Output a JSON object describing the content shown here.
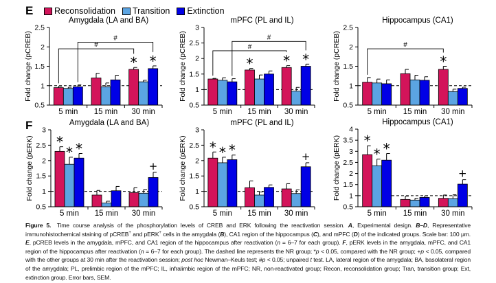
{
  "panel_labels": {
    "E": "E",
    "F": "F"
  },
  "legend": [
    {
      "name": "Reconsolidation",
      "color": "#d3145a"
    },
    {
      "name": "Transition",
      "color": "#5ba4e2"
    },
    {
      "name": "Extinction",
      "color": "#0000e6"
    }
  ],
  "chart_data": [
    {
      "id": "E-amygdala",
      "type": "bar",
      "title": "Amygdala (LA and BA)",
      "ylabel": "Fold change (pCREB)",
      "ylim": [
        0.5,
        2.5
      ],
      "yticks": [
        "0.5",
        "1",
        "1.5",
        "2",
        "2.5"
      ],
      "reference_line": 1,
      "categories": [
        "5 min",
        "15 min",
        "30 min"
      ],
      "series": [
        {
          "name": "Reconsolidation",
          "values": [
            0.95,
            1.2,
            1.42
          ],
          "errors": [
            0.04,
            0.12,
            0.05
          ]
        },
        {
          "name": "Transition",
          "values": [
            0.93,
            0.97,
            1.1
          ],
          "errors": [
            0.03,
            0.1,
            0.04
          ]
        },
        {
          "name": "Extinction",
          "values": [
            0.97,
            1.15,
            1.44
          ],
          "errors": [
            0.05,
            0.12,
            0.07
          ]
        }
      ],
      "markers": [
        {
          "series": 0,
          "category": 2,
          "symbol": "*"
        },
        {
          "series": 2,
          "category": 2,
          "symbol": "*"
        }
      ],
      "brackets": [
        {
          "from": [
            0,
            0
          ],
          "to": [
            2,
            0
          ],
          "y": 1.95,
          "symbol": "#"
        },
        {
          "from": [
            0,
            2
          ],
          "to": [
            2,
            2
          ],
          "y": 2.12,
          "symbol": "#"
        }
      ]
    },
    {
      "id": "E-mpfc",
      "type": "bar",
      "title": "mPFC (PL and IL)",
      "ylabel": "Fold change (pCREB)",
      "ylim": [
        0.5,
        3
      ],
      "yticks": [
        "0.5",
        "1",
        "1.5",
        "2",
        "2.5",
        "3"
      ],
      "reference_line": 1,
      "categories": [
        "5 min",
        "15 min",
        "30 min"
      ],
      "series": [
        {
          "name": "Reconsolidation",
          "values": [
            1.34,
            1.63,
            1.71
          ],
          "errors": [
            0.02,
            0.05,
            0.06
          ]
        },
        {
          "name": "Transition",
          "values": [
            1.3,
            1.34,
            0.95
          ],
          "errors": [
            0.08,
            0.13,
            0.12
          ]
        },
        {
          "name": "Extinction",
          "values": [
            1.25,
            1.5,
            1.75
          ],
          "errors": [
            0.1,
            0.1,
            0.07
          ]
        }
      ],
      "markers": [
        {
          "series": 0,
          "category": 1,
          "symbol": "*"
        },
        {
          "series": 0,
          "category": 2,
          "symbol": "*"
        },
        {
          "series": 2,
          "category": 2,
          "symbol": "*"
        }
      ],
      "brackets": [
        {
          "from": [
            0,
            0
          ],
          "to": [
            2,
            0
          ],
          "y": 2.25,
          "symbol": "#"
        },
        {
          "from": [
            0,
            2
          ],
          "to": [
            2,
            2
          ],
          "y": 2.55,
          "symbol": "#"
        }
      ]
    },
    {
      "id": "E-hippocampus",
      "type": "bar",
      "title": "Hippocampus (CA1)",
      "ylabel": "Fold change (pCREB)",
      "ylim": [
        0.5,
        2.5
      ],
      "yticks": [
        "0.5",
        "1",
        "1.5",
        "2",
        "2.5"
      ],
      "reference_line": 1,
      "categories": [
        "5 min",
        "15 min",
        "30 min"
      ],
      "series": [
        {
          "name": "Reconsolidation",
          "values": [
            1.09,
            1.31,
            1.42
          ],
          "errors": [
            0.12,
            0.11,
            0.08
          ]
        },
        {
          "name": "Transition",
          "values": [
            1.07,
            1.15,
            0.85
          ],
          "errors": [
            0.1,
            0.12,
            0.06
          ]
        },
        {
          "name": "Extinction",
          "values": [
            1.05,
            1.14,
            0.93
          ],
          "errors": [
            0.1,
            0.09,
            0.03
          ]
        }
      ],
      "markers": [
        {
          "series": 0,
          "category": 2,
          "symbol": "*"
        }
      ],
      "brackets": [
        {
          "from": [
            0,
            0
          ],
          "to": [
            2,
            0
          ],
          "y": 1.95,
          "symbol": "#"
        }
      ]
    },
    {
      "id": "F-amygdala",
      "type": "bar",
      "title": "Amygdala (LA and BA)",
      "ylabel": "Fold change (pERK)",
      "ylim": [
        0.5,
        3
      ],
      "yticks": [
        "0.5",
        "1",
        "1.5",
        "2",
        "2.5",
        "3"
      ],
      "reference_line": 1,
      "categories": [
        "5 min",
        "15 min",
        "30 min"
      ],
      "series": [
        {
          "name": "Reconsolidation",
          "values": [
            2.3,
            0.88,
            0.96
          ],
          "errors": [
            0.15,
            0.15,
            0.16
          ]
        },
        {
          "name": "Transition",
          "values": [
            1.88,
            0.62,
            0.94
          ],
          "errors": [
            0.23,
            0.06,
            0.12
          ]
        },
        {
          "name": "Extinction",
          "values": [
            2.08,
            1.02,
            1.45
          ],
          "errors": [
            0.15,
            0.14,
            0.17
          ]
        }
      ],
      "markers": [
        {
          "series": 0,
          "category": 0,
          "symbol": "*"
        },
        {
          "series": 1,
          "category": 0,
          "symbol": "*"
        },
        {
          "series": 2,
          "category": 0,
          "symbol": "*"
        },
        {
          "series": 2,
          "category": 2,
          "symbol": "+"
        }
      ],
      "brackets": []
    },
    {
      "id": "F-mpfc",
      "type": "bar",
      "title": "mPFC (PL and IL)",
      "ylabel": "Fold change (pERK)",
      "ylim": [
        0.5,
        3
      ],
      "yticks": [
        "0.5",
        "1",
        "1.5",
        "2",
        "2.5",
        "3"
      ],
      "reference_line": 1,
      "categories": [
        "5 min",
        "15 min",
        "30 min"
      ],
      "series": [
        {
          "name": "Reconsolidation",
          "values": [
            2.08,
            1.12,
            1.08
          ],
          "errors": [
            0.2,
            0.22,
            0.17
          ]
        },
        {
          "name": "Transition",
          "values": [
            1.93,
            0.88,
            0.93
          ],
          "errors": [
            0.18,
            0.1,
            0.12
          ]
        },
        {
          "name": "Extinction",
          "values": [
            2.03,
            1.13,
            1.8
          ],
          "errors": [
            0.15,
            0.08,
            0.13
          ]
        }
      ],
      "markers": [
        {
          "series": 0,
          "category": 0,
          "symbol": "*"
        },
        {
          "series": 1,
          "category": 0,
          "symbol": "*"
        },
        {
          "series": 2,
          "category": 0,
          "symbol": "*"
        },
        {
          "series": 2,
          "category": 2,
          "symbol": "+"
        }
      ],
      "brackets": []
    },
    {
      "id": "F-hippocampus",
      "type": "bar",
      "title": "Hippocampus (CA1)",
      "ylabel": "Fold change (pERK)",
      "ylim": [
        0.5,
        4
      ],
      "yticks": [
        "0.5",
        "1",
        "1.5",
        "2",
        "2.5",
        "3",
        "3.5",
        "4"
      ],
      "reference_line": 1,
      "categories": [
        "5 min",
        "15 min",
        "30 min"
      ],
      "series": [
        {
          "name": "Reconsolidation",
          "values": [
            2.85,
            0.83,
            0.88
          ],
          "errors": [
            0.4,
            0.15,
            0.15
          ]
        },
        {
          "name": "Transition",
          "values": [
            2.35,
            0.8,
            0.87
          ],
          "errors": [
            0.3,
            0.08,
            0.17
          ]
        },
        {
          "name": "Extinction",
          "values": [
            2.6,
            0.92,
            1.52
          ],
          "errors": [
            0.3,
            0.07,
            0.2
          ]
        }
      ],
      "markers": [
        {
          "series": 0,
          "category": 0,
          "symbol": "*"
        },
        {
          "series": 1,
          "category": 0,
          "symbol": "*"
        },
        {
          "series": 2,
          "category": 0,
          "symbol": "*"
        },
        {
          "series": 2,
          "category": 2,
          "symbol": "+"
        }
      ],
      "brackets": []
    }
  ],
  "caption": [
    {
      "t": "Figure 5.",
      "s": "b"
    },
    {
      "t": " Time course analysis of the phosphorylation levels of CREB and ERK following the reactivation session. "
    },
    {
      "t": "A",
      "s": "bi"
    },
    {
      "t": ", Experimental design. "
    },
    {
      "t": "B–D",
      "s": "bi"
    },
    {
      "t": ", Representative immunohistochemical staining of pCREB"
    },
    {
      "t": "+",
      "s": "sup"
    },
    {
      "t": " and pERK"
    },
    {
      "t": "+",
      "s": "sup"
    },
    {
      "t": " cells in the amygdala ("
    },
    {
      "t": "B",
      "s": "bi"
    },
    {
      "t": "), CA1 region of the hippocampus ("
    },
    {
      "t": "C",
      "s": "bi"
    },
    {
      "t": "), and mPFC ("
    },
    {
      "t": "D",
      "s": "bi"
    },
    {
      "t": ") of the indicated groups. Scale bar: 100 μm. "
    },
    {
      "t": "E",
      "s": "bi"
    },
    {
      "t": ", pCREB levels in the amygdala, mPFC, and CA1 region of the hippocampus after reactivation ("
    },
    {
      "t": "n",
      "s": "i"
    },
    {
      "t": " = 6–7 for each group). "
    },
    {
      "t": "F",
      "s": "bi"
    },
    {
      "t": ", pERK levels in the amygdala, mPFC, and CA1 region of the hippocampus after reactivation ("
    },
    {
      "t": "n",
      "s": "i"
    },
    {
      "t": " = 6–7 for each group). The dashed line represents the NR group; *"
    },
    {
      "t": "p",
      "s": "i"
    },
    {
      "t": " < 0.05, compared with the NR group; +"
    },
    {
      "t": "p",
      "s": "i"
    },
    {
      "t": " < 0.05, compared with the other groups at 30 min after the reactivation session; "
    },
    {
      "t": "post hoc",
      "s": "i"
    },
    {
      "t": " Newman–Keuls test; #"
    },
    {
      "t": "p",
      "s": "i"
    },
    {
      "t": " < 0.05; unpaired "
    },
    {
      "t": "t",
      "s": "i"
    },
    {
      "t": " test. LA, lateral region of the amygdala; BA, basolateral region of the amygdala; PL, prelimbic region of the mPFC; IL, infralimbic region of the mPFC; NR, non-reactivated group; Recon, reconsolidation group; Tran, transition group; Ext, extinction group. Error bars, SEM."
    }
  ]
}
